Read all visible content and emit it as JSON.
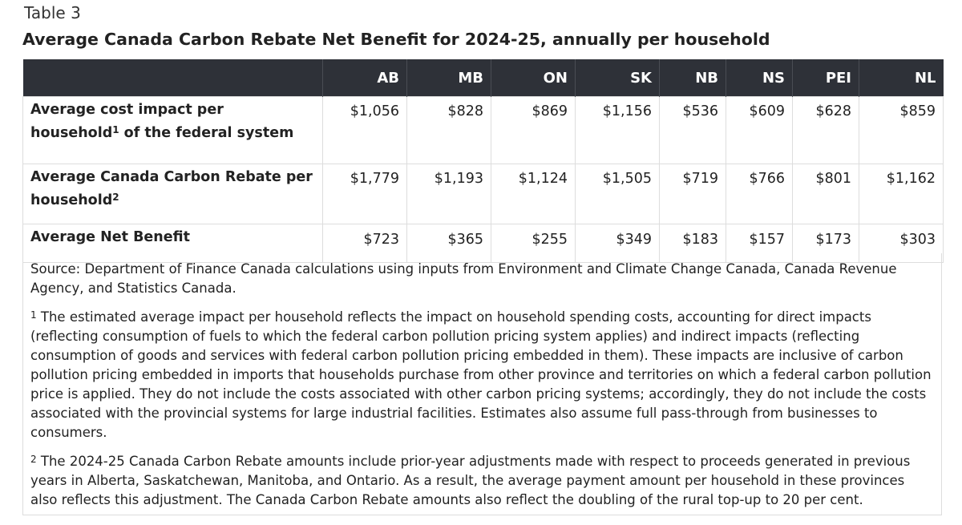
{
  "table_label": "Table 3",
  "title": "Average Canada Carbon Rebate Net Benefit for 2024-25, annually per household",
  "columns": [
    "",
    "AB",
    "MB",
    "ON",
    "SK",
    "NB",
    "NS",
    "PEI",
    "NL"
  ],
  "rows": [
    {
      "label_main": "Average cost impact per household",
      "label_sup": "1",
      "label_rest": " of the federal system",
      "values": [
        "$1,056",
        "$828",
        "$869",
        "$1,156",
        "$536",
        "$609",
        "$628",
        "$859"
      ]
    },
    {
      "label_main": "Average Canada Carbon Rebate per household",
      "label_sup": "2",
      "label_rest": "",
      "values": [
        "$1,779",
        "$1,193",
        "$1,124",
        "$1,505",
        "$719",
        "$766",
        "$801",
        "$1,162"
      ]
    },
    {
      "label_main": "Average Net Benefit",
      "label_sup": "",
      "label_rest": "",
      "values": [
        "$723",
        "$365",
        "$255",
        "$349",
        "$183",
        "$157",
        "$173",
        "$303"
      ]
    }
  ],
  "source": "Source: Department of Finance Canada calculations using inputs from Environment and Climate Change Canada, Canada Revenue Agency, and Statistics Canada.",
  "footnotes": [
    {
      "marker": "1",
      "text": " The estimated average impact per household reflects the impact on household spending costs, accounting for direct impacts (reflecting consumption of fuels to which the federal carbon pollution pricing system applies) and indirect impacts (reflecting consumption of goods and services with federal carbon pollution pricing embedded in them). These impacts are inclusive of carbon pollution pricing embedded in imports that households purchase from other province and territories on which a federal carbon pollution price is applied. They do not include the costs associated with other carbon pricing systems; accordingly, they do not include the costs associated with the provincial systems for large industrial facilities. Estimates also assume full pass-through from businesses to consumers."
    },
    {
      "marker": "2",
      "text": " The 2024-25 Canada Carbon Rebate amounts include prior-year adjustments made with respect to proceeds generated in previous years in Alberta, Saskatchewan, Manitoba, and Ontario. As a result, the average payment amount per household in these provinces also reflects this adjustment. The Canada Carbon Rebate amounts also reflect the doubling of the rural top-up to 20 per cent."
    }
  ],
  "colors": {
    "header_bg": "#2e3138",
    "header_text": "#ffffff",
    "border": "#dddddd",
    "text": "#222222"
  }
}
